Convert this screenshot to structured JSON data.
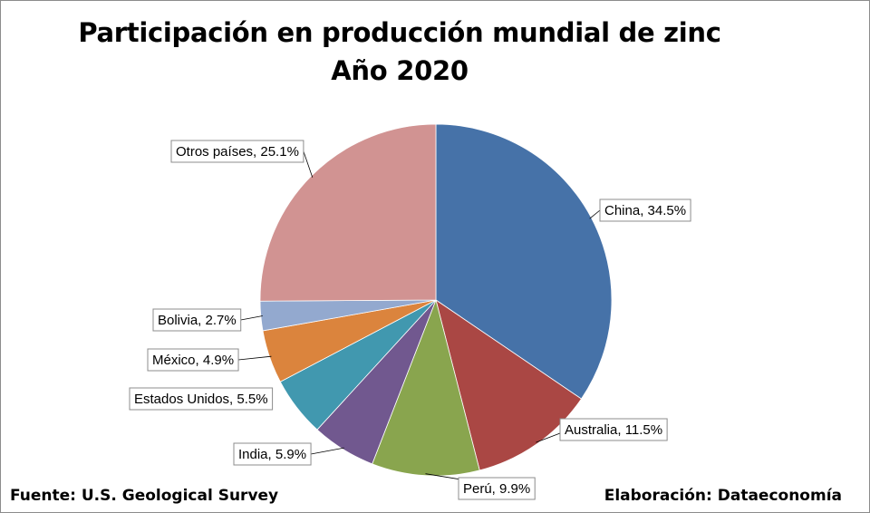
{
  "title_line1": "Participación en producción mundial de zinc",
  "title_line2": "Año 2020",
  "source": "Fuente: U.S. Geological Survey",
  "credit": "Elaboración: Dataeconomía",
  "chart_data": {
    "type": "pie",
    "title": "Participación en producción mundial de zinc Año 2020",
    "start_angle_deg": 0,
    "direction": "clockwise",
    "slices": [
      {
        "name": "China",
        "value": 34.5,
        "label": "China, 34.5%",
        "color": "#4672A8"
      },
      {
        "name": "Australia",
        "value": 11.5,
        "label": "Australia, 11.5%",
        "color": "#AA4744"
      },
      {
        "name": "Perú",
        "value": 9.9,
        "label": "Perú, 9.9%",
        "color": "#89A54E"
      },
      {
        "name": "India",
        "value": 5.9,
        "label": "India, 5.9%",
        "color": "#71588F"
      },
      {
        "name": "Estados Unidos",
        "value": 5.5,
        "label": "Estados Unidos, 5.5%",
        "color": "#4198AF"
      },
      {
        "name": "México",
        "value": 4.9,
        "label": "México, 4.9%",
        "color": "#DB843D"
      },
      {
        "name": "Bolivia",
        "value": 2.7,
        "label": "Bolivia, 2.7%",
        "color": "#93A9CF"
      },
      {
        "name": "Otros países",
        "value": 25.1,
        "label": "Otros países, 25.1%",
        "color": "#D19392"
      }
    ]
  }
}
